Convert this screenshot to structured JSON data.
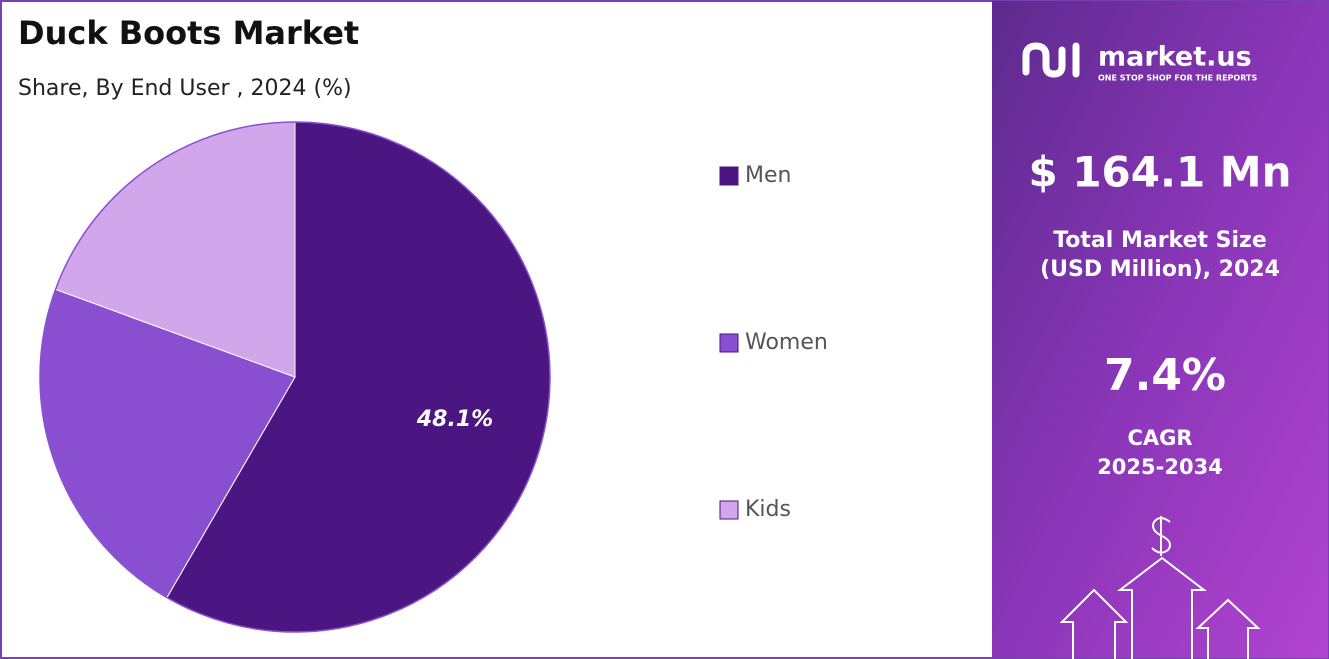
{
  "chart_data": {
    "type": "pie",
    "title": "Duck Boots Market",
    "subtitle": "Share, By End User , 2024 (%)",
    "categories": [
      "Men",
      "Women",
      "Kids"
    ],
    "values": [
      48.1,
      18.3,
      16.0
    ],
    "value_labels": [
      "48.1%",
      null,
      null
    ],
    "colors": [
      "#4b1681",
      "#8a4fd0",
      "#d2a6ea"
    ],
    "legend": "right"
  },
  "sidebar": {
    "brand": "market.us",
    "tagline": "ONE STOP SHOP FOR THE REPORTS",
    "market_size": "$ 164.1 Mn",
    "market_size_label": [
      "Total Market Size",
      "(USD Million), 2024"
    ],
    "cagr": "7.4%",
    "cagr_label": [
      "CAGR",
      "2025-2034"
    ]
  }
}
